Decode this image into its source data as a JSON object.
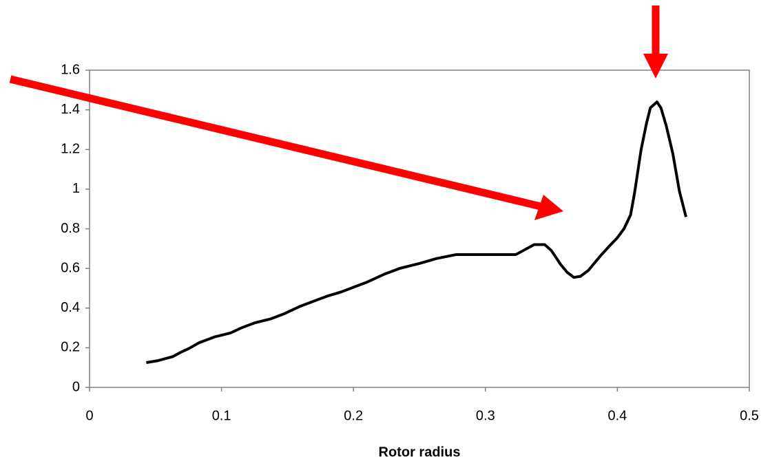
{
  "chart_data": {
    "type": "line",
    "x_label": "Rotor radius",
    "x": [
      0.043,
      0.052,
      0.063,
      0.07,
      0.075,
      0.083,
      0.095,
      0.107,
      0.115,
      0.125,
      0.137,
      0.147,
      0.16,
      0.17,
      0.18,
      0.19,
      0.2,
      0.21,
      0.223,
      0.235,
      0.25,
      0.263,
      0.278,
      0.3,
      0.323,
      0.337,
      0.345,
      0.35,
      0.357,
      0.362,
      0.367,
      0.372,
      0.378,
      0.388,
      0.395,
      0.4,
      0.405,
      0.41,
      0.413,
      0.418,
      0.422,
      0.425,
      0.43,
      0.433,
      0.437,
      0.442,
      0.447,
      0.452
    ],
    "series": [
      {
        "color": "#000000",
        "values": [
          0.125,
          0.135,
          0.155,
          0.18,
          0.195,
          0.225,
          0.255,
          0.275,
          0.3,
          0.325,
          0.345,
          0.37,
          0.41,
          0.435,
          0.46,
          0.48,
          0.505,
          0.53,
          0.57,
          0.6,
          0.625,
          0.65,
          0.67,
          0.67,
          0.67,
          0.72,
          0.72,
          0.69,
          0.62,
          0.58,
          0.555,
          0.56,
          0.59,
          0.67,
          0.72,
          0.755,
          0.8,
          0.87,
          0.98,
          1.2,
          1.33,
          1.41,
          1.44,
          1.41,
          1.32,
          1.18,
          0.99,
          0.86
        ]
      }
    ],
    "xlim": [
      0,
      0.5
    ],
    "xticks": [
      0,
      0.1,
      0.2,
      0.3,
      0.4,
      0.5
    ],
    "ylim": [
      0,
      1.6
    ],
    "yticks": [
      0,
      0.2,
      0.4,
      0.6,
      0.8,
      1,
      1.2,
      1.4,
      1.6
    ]
  }
}
